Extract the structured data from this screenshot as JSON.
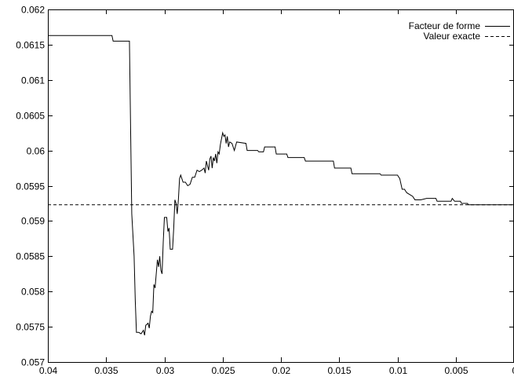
{
  "chart_data": {
    "type": "line",
    "title": "",
    "xlabel": "",
    "ylabel": "",
    "xlim": [
      0.04,
      0.0
    ],
    "ylim": [
      0.057,
      0.062
    ],
    "x_reversed": true,
    "grid": false,
    "legend": "top-right",
    "x_ticks": [
      {
        "value": 0.04,
        "label": "0.04"
      },
      {
        "value": 0.035,
        "label": "0.035"
      },
      {
        "value": 0.03,
        "label": "0.03"
      },
      {
        "value": 0.025,
        "label": "0.025"
      },
      {
        "value": 0.02,
        "label": "0.02"
      },
      {
        "value": 0.015,
        "label": "0.015"
      },
      {
        "value": 0.01,
        "label": "0.01"
      },
      {
        "value": 0.005,
        "label": "0.005"
      },
      {
        "value": 0.0,
        "label": "0"
      }
    ],
    "y_ticks": [
      {
        "value": 0.057,
        "label": "0.057"
      },
      {
        "value": 0.0575,
        "label": "0.0575"
      },
      {
        "value": 0.058,
        "label": "0.058"
      },
      {
        "value": 0.0585,
        "label": "0.0585"
      },
      {
        "value": 0.059,
        "label": "0.059"
      },
      {
        "value": 0.0595,
        "label": "0.0595"
      },
      {
        "value": 0.06,
        "label": "0.06"
      },
      {
        "value": 0.0605,
        "label": "0.0605"
      },
      {
        "value": 0.061,
        "label": "0.061"
      },
      {
        "value": 0.0615,
        "label": "0.0615"
      },
      {
        "value": 0.062,
        "label": "0.062"
      }
    ],
    "series": [
      {
        "name": "Facteur de forme",
        "style": "solid",
        "color": "#000000",
        "points": [
          [
            0.04,
            0.06163
          ],
          [
            0.0345,
            0.06163
          ],
          [
            0.0344,
            0.06155
          ],
          [
            0.033,
            0.06155
          ],
          [
            0.0329,
            0.0603
          ],
          [
            0.0328,
            0.0591
          ],
          [
            0.0326,
            0.0585
          ],
          [
            0.0325,
            0.05787
          ],
          [
            0.0324,
            0.05742
          ],
          [
            0.0322,
            0.05742
          ],
          [
            0.032,
            0.0574
          ],
          [
            0.0318,
            0.05745
          ],
          [
            0.0317,
            0.05738
          ],
          [
            0.0316,
            0.05752
          ],
          [
            0.0314,
            0.05755
          ],
          [
            0.0313,
            0.05748
          ],
          [
            0.0312,
            0.05765
          ],
          [
            0.0311,
            0.05772
          ],
          [
            0.031,
            0.0577
          ],
          [
            0.0309,
            0.0581
          ],
          [
            0.0308,
            0.05805
          ],
          [
            0.0307,
            0.05825
          ],
          [
            0.0306,
            0.05845
          ],
          [
            0.0305,
            0.05835
          ],
          [
            0.0304,
            0.0585
          ],
          [
            0.0303,
            0.0583
          ],
          [
            0.0302,
            0.05825
          ],
          [
            0.0301,
            0.0587
          ],
          [
            0.03,
            0.05905
          ],
          [
            0.0298,
            0.05905
          ],
          [
            0.0297,
            0.05885
          ],
          [
            0.0296,
            0.0589
          ],
          [
            0.0295,
            0.0586
          ],
          [
            0.0293,
            0.0586
          ],
          [
            0.0292,
            0.0589
          ],
          [
            0.0291,
            0.0593
          ],
          [
            0.029,
            0.05925
          ],
          [
            0.0289,
            0.0591
          ],
          [
            0.0288,
            0.0593
          ],
          [
            0.0287,
            0.0596
          ],
          [
            0.0286,
            0.05965
          ],
          [
            0.0284,
            0.05955
          ],
          [
            0.0282,
            0.05955
          ],
          [
            0.028,
            0.0595
          ],
          [
            0.0278,
            0.05952
          ],
          [
            0.0276,
            0.05962
          ],
          [
            0.0274,
            0.05962
          ],
          [
            0.0272,
            0.05972
          ],
          [
            0.027,
            0.0597
          ],
          [
            0.0268,
            0.05972
          ],
          [
            0.0266,
            0.05975
          ],
          [
            0.0265,
            0.05968
          ],
          [
            0.0264,
            0.05985
          ],
          [
            0.0262,
            0.05972
          ],
          [
            0.0261,
            0.05988
          ],
          [
            0.026,
            0.05992
          ],
          [
            0.0259,
            0.05975
          ],
          [
            0.0258,
            0.0599
          ],
          [
            0.0257,
            0.05985
          ],
          [
            0.0256,
            0.05995
          ],
          [
            0.0255,
            0.05982
          ],
          [
            0.0254,
            0.05998
          ],
          [
            0.0253,
            0.05995
          ],
          [
            0.0252,
            0.06008
          ],
          [
            0.025,
            0.06025
          ],
          [
            0.0249,
            0.0602
          ],
          [
            0.0248,
            0.06022
          ],
          [
            0.0247,
            0.0601
          ],
          [
            0.0246,
            0.0602
          ],
          [
            0.0245,
            0.06005
          ],
          [
            0.0244,
            0.06012
          ],
          [
            0.0242,
            0.0601
          ],
          [
            0.024,
            0.06
          ],
          [
            0.0238,
            0.06012
          ],
          [
            0.023,
            0.0601
          ],
          [
            0.0229,
            0.06
          ],
          [
            0.022,
            0.06
          ],
          [
            0.0219,
            0.05998
          ],
          [
            0.0215,
            0.05998
          ],
          [
            0.0214,
            0.06005
          ],
          [
            0.0205,
            0.06005
          ],
          [
            0.0204,
            0.05995
          ],
          [
            0.0195,
            0.05995
          ],
          [
            0.0194,
            0.0599
          ],
          [
            0.018,
            0.0599
          ],
          [
            0.0179,
            0.05985
          ],
          [
            0.0155,
            0.05985
          ],
          [
            0.0154,
            0.05975
          ],
          [
            0.014,
            0.05975
          ],
          [
            0.0139,
            0.05967
          ],
          [
            0.0115,
            0.05967
          ],
          [
            0.0114,
            0.05965
          ],
          [
            0.01,
            0.05965
          ],
          [
            0.0098,
            0.0596
          ],
          [
            0.0096,
            0.05945
          ],
          [
            0.0094,
            0.05945
          ],
          [
            0.0092,
            0.0594
          ],
          [
            0.0089,
            0.05937
          ],
          [
            0.0087,
            0.05935
          ],
          [
            0.0085,
            0.0593
          ],
          [
            0.008,
            0.0593
          ],
          [
            0.0075,
            0.05932
          ],
          [
            0.0067,
            0.05932
          ],
          [
            0.0066,
            0.05928
          ],
          [
            0.0054,
            0.05928
          ],
          [
            0.0053,
            0.05932
          ],
          [
            0.0052,
            0.0593
          ],
          [
            0.0051,
            0.05928
          ],
          [
            0.0046,
            0.05928
          ],
          [
            0.0045,
            0.05925
          ],
          [
            0.004,
            0.05925
          ],
          [
            0.0039,
            0.05923
          ],
          [
            0.0,
            0.05923
          ]
        ]
      },
      {
        "name": "Valeur exacte",
        "style": "dashed",
        "color": "#000000",
        "points": [
          [
            0.04,
            0.05923
          ],
          [
            0.0,
            0.05923
          ]
        ]
      }
    ]
  }
}
